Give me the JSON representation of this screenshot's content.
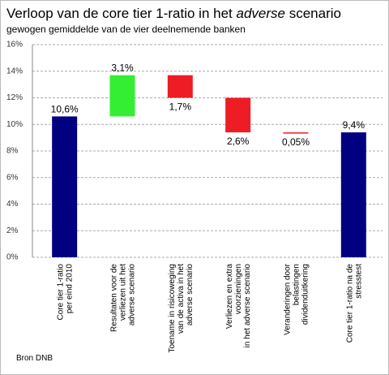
{
  "chart_data": {
    "type": "waterfall",
    "title": [
      "Verloop van de core tier 1-ratio in het ",
      "adverse",
      " scenario"
    ],
    "subtitle": "gewogen gemiddelde van de vier deelnemende banken",
    "source": "Bron DNB",
    "categories": [
      [
        "Core tier 1-ratio",
        "per eind 2010"
      ],
      [
        "Resultaten voor de",
        "verliezen uit het",
        "adverse scenario"
      ],
      [
        "Toename in risicoweging",
        "van de activa in het",
        "adverse scenario"
      ],
      [
        "Verliezen en extra",
        "voorzieningen",
        "in het adverse scenario"
      ],
      [
        "Veranderingen door",
        "belastingen",
        "dividenduitkering"
      ],
      [
        "Core tier 1-ratio na de",
        "stresstest"
      ]
    ],
    "values": [
      10.6,
      3.1,
      -1.7,
      -2.6,
      -0.05,
      9.4
    ],
    "value_labels": [
      "10,6%",
      "3,1%",
      "1,7%",
      "2,6%",
      "0,05%",
      "9,4%"
    ],
    "colors": [
      "#000080",
      "#33ee33",
      "#ee1c24",
      "#ee1c24",
      "#ee1c24",
      "#000080"
    ],
    "ylim": [
      0,
      16
    ],
    "yticks": [
      {
        "value": 0,
        "label": "0%"
      },
      {
        "value": 2,
        "label": "2%"
      },
      {
        "value": 4,
        "label": "4%"
      },
      {
        "value": 6,
        "label": "6%"
      },
      {
        "value": 8,
        "label": "8%"
      },
      {
        "value": 10,
        "label": "10%"
      },
      {
        "value": 12,
        "label": "12%"
      },
      {
        "value": 14,
        "label": "14%"
      },
      {
        "value": 16,
        "label": "16%"
      }
    ],
    "grid": true
  }
}
